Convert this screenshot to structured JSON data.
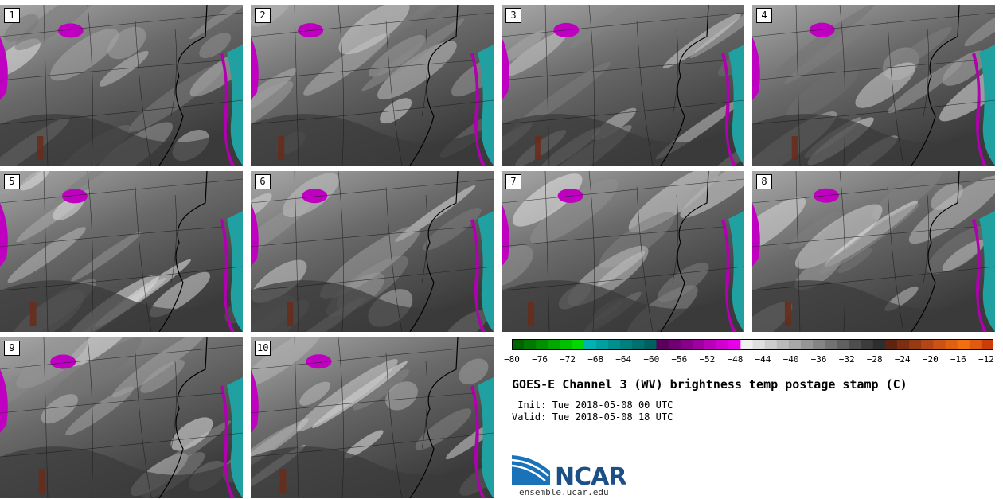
{
  "panels": [
    {
      "num": "1"
    },
    {
      "num": "2"
    },
    {
      "num": "3"
    },
    {
      "num": "4"
    },
    {
      "num": "5"
    },
    {
      "num": "6"
    },
    {
      "num": "7"
    },
    {
      "num": "8"
    },
    {
      "num": "9"
    },
    {
      "num": "10"
    }
  ],
  "colorbar": {
    "labels": [
      "−80",
      "−76",
      "−72",
      "−68",
      "−64",
      "−60",
      "−56",
      "−52",
      "−48",
      "−44",
      "−40",
      "−36",
      "−32",
      "−28",
      "−24",
      "−20",
      "−16",
      "−12"
    ],
    "colors": [
      "#006400",
      "#007a00",
      "#009000",
      "#00a800",
      "#00c000",
      "#00d800",
      "#00b3b3",
      "#00a0a0",
      "#008f8f",
      "#007f7f",
      "#006f6f",
      "#005f5f",
      "#5a005a",
      "#700070",
      "#880088",
      "#a000a0",
      "#b800b8",
      "#d000d0",
      "#e800e8",
      "#f0f0f0",
      "#dedede",
      "#cccccc",
      "#bababa",
      "#a8a8a8",
      "#969696",
      "#848484",
      "#727272",
      "#606060",
      "#4e4e4e",
      "#3c3c3c",
      "#2e2e2e",
      "#5e2410",
      "#7a2e12",
      "#963a14",
      "#b24616",
      "#cc5214",
      "#e06010",
      "#f07010",
      "#e05a10",
      "#cc3c08"
    ]
  },
  "title": "GOES-E Channel 3 (WV) brightness temp postage stamp (C)",
  "init_line": " Init: Tue 2018-05-08 00 UTC",
  "valid_line": "Valid: Tue 2018-05-08 18 UTC",
  "logo": {
    "text": "NCAR",
    "url": "ensemble.ucar.edu"
  }
}
